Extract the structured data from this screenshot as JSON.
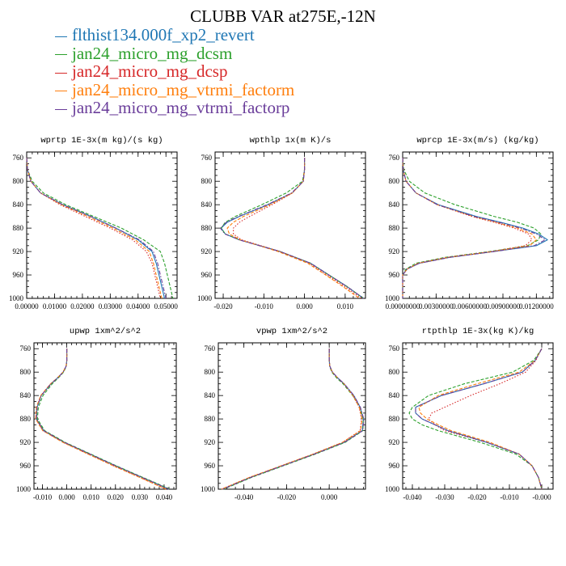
{
  "title": "CLUBB VAR at275E,-12N",
  "colors": {
    "flthist134.000f_xp2_revert": "#1f77b4",
    "jan24_micro_mg_dcsm": "#2ca02c",
    "jan24_micro_mg_dcsp": "#d62728",
    "jan24_micro_mg_vtrmi_factorm": "#ff7f0e",
    "jan24_micro_mg_vtrmi_factorp": "#6a3d9a"
  },
  "legend": [
    {
      "label": "flthist134.000f_xp2_revert",
      "color": "#1f77b4",
      "dash": "solid"
    },
    {
      "label": "jan24_micro_mg_dcsm",
      "color": "#2ca02c",
      "dash": "dashed"
    },
    {
      "label": "jan24_micro_mg_dcsp",
      "color": "#d62728",
      "dash": "dotted"
    },
    {
      "label": "jan24_micro_mg_vtrmi_factorm",
      "color": "#ff7f0e",
      "dash": "dashed"
    },
    {
      "label": "jan24_micro_mg_vtrmi_factorp",
      "color": "#6a3d9a",
      "dash": "dashdot"
    }
  ],
  "chart_data": [
    {
      "type": "line",
      "title": "wprtp  1E-3x(m kg)/(s kg)",
      "xlim": [
        0.0,
        0.054
      ],
      "ylim": [
        1000,
        750
      ],
      "xticks": [
        0.0,
        0.01,
        0.02,
        0.03,
        0.04,
        0.05
      ],
      "xtick_labels": [
        "0.00000",
        "0.01000",
        "0.02000",
        "0.03000",
        "0.04000",
        "0.05000"
      ],
      "yticks": [
        760,
        800,
        840,
        880,
        920,
        960,
        1000
      ],
      "y": [
        760,
        780,
        800,
        820,
        840,
        860,
        880,
        900,
        920,
        940,
        960,
        980,
        1000
      ],
      "series": [
        {
          "name": "flthist134.000f_xp2_revert",
          "x": [
            0.0,
            0.0003,
            0.0015,
            0.005,
            0.013,
            0.023,
            0.032,
            0.04,
            0.045,
            0.0465,
            0.0475,
            0.0485,
            0.0495
          ]
        },
        {
          "name": "jan24_micro_mg_dcsm",
          "x": [
            0.0,
            0.0003,
            0.002,
            0.006,
            0.014,
            0.024,
            0.034,
            0.042,
            0.048,
            0.0495,
            0.0505,
            0.0515,
            0.0525
          ]
        },
        {
          "name": "jan24_micro_mg_dcsp",
          "x": [
            0.0,
            0.0003,
            0.0015,
            0.005,
            0.012,
            0.021,
            0.03,
            0.038,
            0.043,
            0.045,
            0.046,
            0.047,
            0.048
          ]
        },
        {
          "name": "jan24_micro_mg_vtrmi_factorm",
          "x": [
            0.0,
            0.0003,
            0.0015,
            0.005,
            0.0125,
            0.022,
            0.031,
            0.039,
            0.044,
            0.0455,
            0.0465,
            0.0475,
            0.0485
          ]
        },
        {
          "name": "jan24_micro_mg_vtrmi_factorp",
          "x": [
            0.0,
            0.0003,
            0.0015,
            0.005,
            0.013,
            0.023,
            0.032,
            0.0405,
            0.0455,
            0.047,
            0.048,
            0.049,
            0.05
          ]
        }
      ]
    },
    {
      "type": "line",
      "title": "wpthlp  1x(m K)/s",
      "xlim": [
        -0.022,
        0.015
      ],
      "ylim": [
        1000,
        750
      ],
      "xticks": [
        -0.02,
        -0.01,
        0.0,
        0.01
      ],
      "xtick_labels": [
        "-0.020",
        "-0.010",
        "0.000",
        "0.010"
      ],
      "yticks": [
        760,
        800,
        840,
        880,
        920,
        960,
        1000
      ],
      "y": [
        760,
        780,
        800,
        820,
        840,
        860,
        870,
        880,
        890,
        900,
        920,
        940,
        960,
        980,
        1000
      ],
      "series": [
        {
          "name": "flthist134.000f_xp2_revert",
          "x": [
            0.0,
            0.0,
            -0.0003,
            -0.003,
            -0.009,
            -0.016,
            -0.019,
            -0.0205,
            -0.0195,
            -0.016,
            -0.006,
            0.0015,
            0.006,
            0.0105,
            0.0145
          ]
        },
        {
          "name": "jan24_micro_mg_dcsm",
          "x": [
            0.0,
            0.0,
            -0.0005,
            -0.0045,
            -0.0105,
            -0.017,
            -0.0195,
            -0.0205,
            -0.0195,
            -0.016,
            -0.006,
            0.0015,
            0.006,
            0.0105,
            0.0145
          ]
        },
        {
          "name": "jan24_micro_mg_dcsp",
          "x": [
            0.0,
            0.0,
            -0.0003,
            -0.003,
            -0.008,
            -0.0135,
            -0.016,
            -0.0175,
            -0.0175,
            -0.0155,
            -0.006,
            0.0012,
            0.0055,
            0.01,
            0.014
          ]
        },
        {
          "name": "jan24_micro_mg_vtrmi_factorm",
          "x": [
            0.0,
            0.0,
            -0.0003,
            -0.003,
            -0.0085,
            -0.015,
            -0.0175,
            -0.019,
            -0.0185,
            -0.0158,
            -0.0065,
            0.0008,
            0.0052,
            0.0095,
            0.0135
          ]
        },
        {
          "name": "jan24_micro_mg_vtrmi_factorp",
          "x": [
            0.0,
            0.0,
            -0.0003,
            -0.0032,
            -0.0092,
            -0.0162,
            -0.0192,
            -0.0207,
            -0.0196,
            -0.0161,
            -0.006,
            0.0015,
            0.006,
            0.0105,
            0.0145
          ]
        }
      ]
    },
    {
      "type": "line",
      "title": "wprcp  1E-3x(m/s) (kg/kg)",
      "xlim": [
        0.0,
        0.0135
      ],
      "ylim": [
        1000,
        750
      ],
      "xticks": [
        0.0,
        0.003,
        0.006,
        0.009,
        0.012
      ],
      "xtick_labels": [
        "0.00000000",
        "0.00300000",
        "0.00600000",
        "0.00900000",
        "0.01200000"
      ],
      "yticks": [
        760,
        800,
        840,
        880,
        920,
        960,
        1000
      ],
      "y": [
        760,
        780,
        800,
        820,
        840,
        860,
        870,
        880,
        890,
        900,
        910,
        920,
        930,
        940,
        950,
        960,
        1000
      ],
      "series": [
        {
          "name": "flthist134.000f_xp2_revert",
          "x": [
            0.0,
            5e-05,
            0.0003,
            0.0012,
            0.0032,
            0.0066,
            0.0088,
            0.0108,
            0.0122,
            0.013,
            0.012,
            0.0082,
            0.0042,
            0.0015,
            0.0004,
            0.0,
            0.0
          ]
        },
        {
          "name": "jan24_micro_mg_dcsm",
          "x": [
            0.0,
            0.0001,
            0.0006,
            0.002,
            0.0047,
            0.0082,
            0.0103,
            0.0118,
            0.0124,
            0.0122,
            0.0112,
            0.0078,
            0.0038,
            0.0012,
            0.0003,
            0.0,
            0.0
          ]
        },
        {
          "name": "jan24_micro_mg_dcsp",
          "x": [
            0.0,
            5e-05,
            0.0003,
            0.0012,
            0.0031,
            0.0062,
            0.0082,
            0.01,
            0.0113,
            0.0116,
            0.011,
            0.008,
            0.004,
            0.0014,
            0.0004,
            0.0,
            0.0
          ]
        },
        {
          "name": "jan24_micro_mg_vtrmi_factorm",
          "x": [
            0.0,
            5e-05,
            0.0003,
            0.0012,
            0.0031,
            0.0063,
            0.0084,
            0.0103,
            0.0116,
            0.012,
            0.0114,
            0.0081,
            0.0041,
            0.0014,
            0.0004,
            0.0,
            0.0
          ]
        },
        {
          "name": "jan24_micro_mg_vtrmi_factorp",
          "x": [
            0.0,
            5e-05,
            0.0003,
            0.0012,
            0.0031,
            0.0064,
            0.0086,
            0.0106,
            0.012,
            0.0128,
            0.0118,
            0.0082,
            0.0042,
            0.0015,
            0.0004,
            0.0,
            0.0
          ]
        }
      ]
    },
    {
      "type": "line",
      "title": "upwp  1xm^2/s^2",
      "xlim": [
        -0.0135,
        0.045
      ],
      "ylim": [
        1000,
        750
      ],
      "xticks": [
        -0.01,
        0.0,
        0.01,
        0.02,
        0.03,
        0.04
      ],
      "xtick_labels": [
        "-0.010",
        "0.000",
        "0.010",
        "0.020",
        "0.030",
        "0.040"
      ],
      "yticks": [
        760,
        800,
        840,
        880,
        920,
        960,
        1000
      ],
      "y": [
        760,
        780,
        790,
        800,
        810,
        820,
        840,
        860,
        880,
        900,
        920,
        940,
        960,
        980,
        1000
      ],
      "series": [
        {
          "name": "flthist134.000f_xp2_revert",
          "x": [
            0.0,
            0.0,
            -0.0003,
            -0.0015,
            -0.0038,
            -0.0065,
            -0.0105,
            -0.0122,
            -0.0125,
            -0.0095,
            -0.001,
            0.0095,
            0.02,
            0.031,
            0.042
          ]
        },
        {
          "name": "jan24_micro_mg_dcsm",
          "x": [
            0.0,
            0.0,
            -0.0002,
            -0.0013,
            -0.0035,
            -0.006,
            -0.0098,
            -0.0117,
            -0.0121,
            -0.0091,
            -0.0007,
            0.0098,
            0.0203,
            0.0313,
            0.0425
          ]
        },
        {
          "name": "jan24_micro_mg_dcsp",
          "x": [
            0.0,
            0.0,
            -0.0003,
            -0.0015,
            -0.0038,
            -0.0066,
            -0.0106,
            -0.0124,
            -0.0127,
            -0.0098,
            -0.0015,
            0.0088,
            0.0192,
            0.0302,
            0.041
          ]
        },
        {
          "name": "jan24_micro_mg_vtrmi_factorm",
          "x": [
            0.0,
            0.0,
            -0.0003,
            -0.0016,
            -0.0039,
            -0.0067,
            -0.0107,
            -0.0125,
            -0.0128,
            -0.0099,
            -0.0016,
            0.0087,
            0.0191,
            0.03,
            0.0408
          ]
        },
        {
          "name": "jan24_micro_mg_vtrmi_factorp",
          "x": [
            0.0,
            0.0,
            -0.0003,
            -0.0015,
            -0.0038,
            -0.0065,
            -0.0105,
            -0.0122,
            -0.0125,
            -0.0095,
            -0.001,
            0.0095,
            0.02,
            0.031,
            0.042
          ]
        }
      ]
    },
    {
      "type": "line",
      "title": "vpwp  1xm^2/s^2",
      "xlim": [
        -0.052,
        0.017
      ],
      "ylim": [
        1000,
        750
      ],
      "xticks": [
        -0.04,
        -0.02,
        0.0
      ],
      "xtick_labels": [
        "-0.040",
        "-0.020",
        "0.000"
      ],
      "yticks": [
        760,
        800,
        840,
        880,
        920,
        960,
        1000
      ],
      "y": [
        760,
        780,
        790,
        800,
        810,
        820,
        840,
        860,
        880,
        900,
        920,
        940,
        960,
        980,
        1000
      ],
      "series": [
        {
          "name": "flthist134.000f_xp2_revert",
          "x": [
            0.0,
            0.0,
            0.0003,
            0.0015,
            0.004,
            0.007,
            0.0115,
            0.0145,
            0.016,
            0.0155,
            0.007,
            -0.007,
            -0.022,
            -0.037,
            -0.05
          ]
        },
        {
          "name": "jan24_micro_mg_dcsm",
          "x": [
            0.0,
            0.0,
            0.0002,
            0.0012,
            0.0035,
            0.0065,
            0.011,
            0.0142,
            0.016,
            0.0158,
            0.0075,
            -0.0065,
            -0.0215,
            -0.0365,
            -0.0495
          ]
        },
        {
          "name": "jan24_micro_mg_dcsp",
          "x": [
            0.0,
            0.0,
            0.0003,
            0.0015,
            0.004,
            0.007,
            0.0112,
            0.014,
            0.0152,
            0.0145,
            0.0062,
            -0.0075,
            -0.0225,
            -0.0375,
            -0.0505
          ]
        },
        {
          "name": "jan24_micro_mg_vtrmi_factorm",
          "x": [
            0.0,
            0.0,
            0.0003,
            0.0015,
            0.004,
            0.007,
            0.0112,
            0.0141,
            0.0154,
            0.0147,
            0.0063,
            -0.0075,
            -0.0225,
            -0.0375,
            -0.0505
          ]
        },
        {
          "name": "jan24_micro_mg_vtrmi_factorp",
          "x": [
            0.0,
            0.0,
            0.0003,
            0.0015,
            0.004,
            0.007,
            0.0116,
            0.0146,
            0.0162,
            0.0157,
            0.0071,
            -0.0069,
            -0.0219,
            -0.0369,
            -0.0499
          ]
        }
      ]
    },
    {
      "type": "line",
      "title": "rtpthlp  1E-3x(kg K)/kg",
      "xlim": [
        -0.043,
        0.0035
      ],
      "ylim": [
        1000,
        750
      ],
      "xticks": [
        -0.04,
        -0.03,
        -0.02,
        -0.01,
        0.0
      ],
      "xtick_labels": [
        "-0.040",
        "-0.030",
        "-0.020",
        "-0.010",
        "-0.000"
      ],
      "yticks": [
        760,
        800,
        840,
        880,
        920,
        960,
        1000
      ],
      "y": [
        760,
        770,
        780,
        800,
        820,
        840,
        860,
        870,
        880,
        890,
        900,
        920,
        940,
        960,
        980,
        1000
      ],
      "series": [
        {
          "name": "flthist134.000f_xp2_revert",
          "x": [
            0.0,
            -0.001,
            -0.002,
            -0.006,
            -0.018,
            -0.031,
            -0.039,
            -0.039,
            -0.037,
            -0.033,
            -0.029,
            -0.017,
            -0.007,
            -0.003,
            -0.001,
            0.0
          ]
        },
        {
          "name": "jan24_micro_mg_dcsm",
          "x": [
            0.0,
            -0.0012,
            -0.0025,
            -0.009,
            -0.024,
            -0.035,
            -0.04,
            -0.041,
            -0.04,
            -0.037,
            -0.032,
            -0.019,
            -0.008,
            -0.003,
            -0.001,
            0.0
          ]
        },
        {
          "name": "jan24_micro_mg_dcsp",
          "x": [
            0.0,
            -0.001,
            -0.0018,
            -0.005,
            -0.013,
            -0.022,
            -0.03,
            -0.034,
            -0.035,
            -0.033,
            -0.03,
            -0.017,
            -0.007,
            -0.003,
            -0.001,
            0.0
          ]
        },
        {
          "name": "jan24_micro_mg_vtrmi_factorm",
          "x": [
            0.0,
            -0.001,
            -0.002,
            -0.007,
            -0.02,
            -0.032,
            -0.038,
            -0.0375,
            -0.0355,
            -0.032,
            -0.028,
            -0.016,
            -0.007,
            -0.003,
            -0.001,
            0.0
          ]
        },
        {
          "name": "jan24_micro_mg_vtrmi_factorp",
          "x": [
            0.0,
            -0.001,
            -0.002,
            -0.006,
            -0.018,
            -0.031,
            -0.039,
            -0.039,
            -0.037,
            -0.033,
            -0.029,
            -0.017,
            -0.007,
            -0.003,
            -0.001,
            0.0
          ]
        }
      ]
    }
  ]
}
